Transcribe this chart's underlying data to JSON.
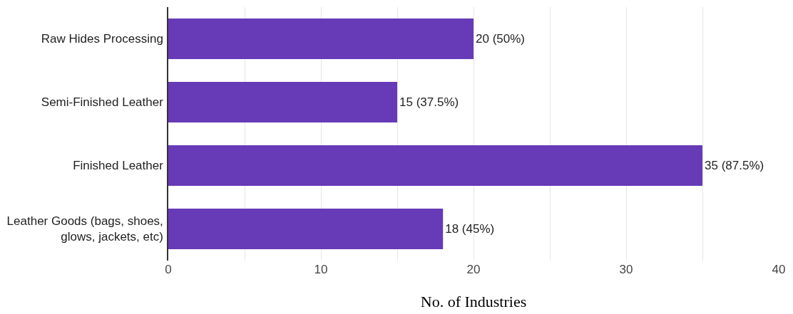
{
  "chart_data": {
    "type": "bar",
    "orientation": "horizontal",
    "xlabel": "No. of Industries",
    "categories": [
      "Raw Hides Processing",
      "Semi-Finished Leather",
      "Finished Leather",
      "Leather Goods (bags, shoes,\nglows, jackets, etc)"
    ],
    "values": [
      20,
      15,
      35,
      18
    ],
    "value_labels": [
      "20 (50%)",
      "15 (37.5%)",
      "35 (87.5%)",
      "18 (45%)"
    ],
    "color": "#673ab7",
    "xlim": [
      0,
      40
    ],
    "xticks": [
      0,
      {
        "value": 5,
        "label": null
      },
      10,
      {
        "value": 15,
        "label": null
      },
      20,
      {
        "value": 25,
        "label": null
      },
      30,
      {
        "value": 35,
        "label": null
      },
      40
    ],
    "grid": "x",
    "legend": false
  }
}
